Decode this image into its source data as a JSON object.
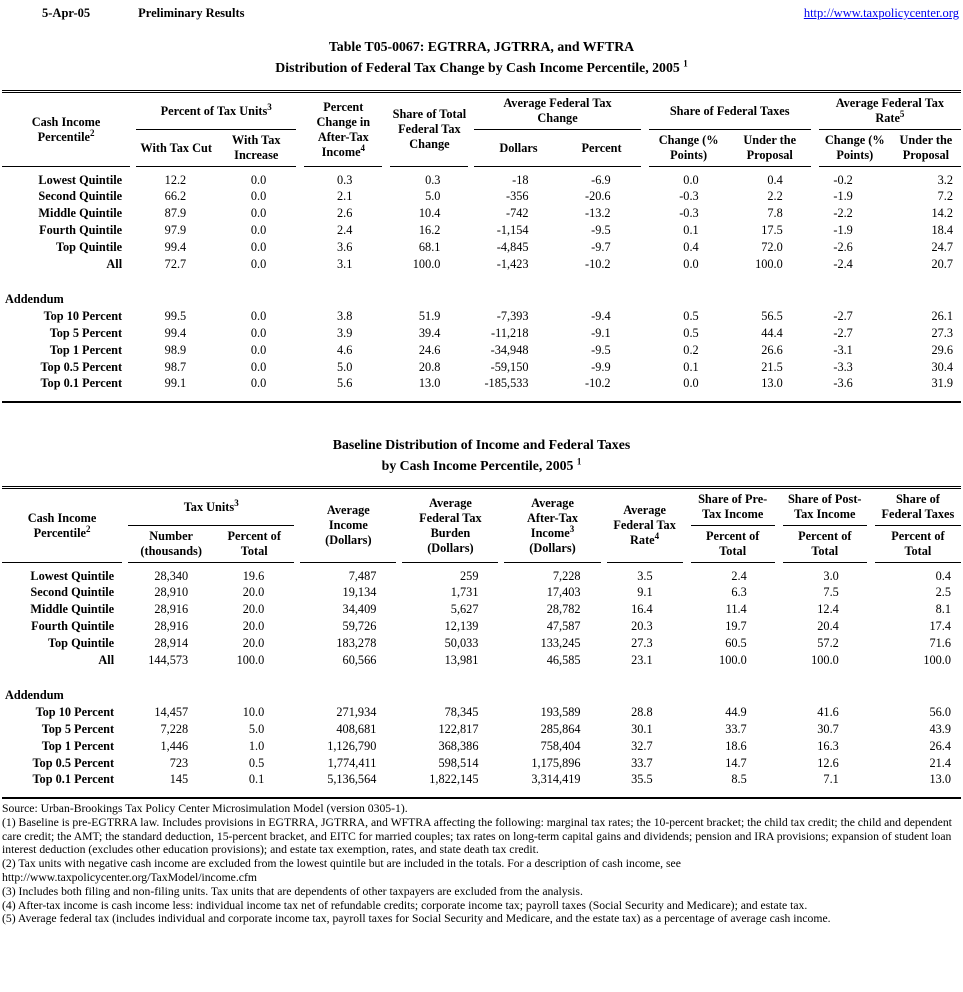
{
  "header": {
    "date": "5-Apr-05",
    "status": "Preliminary Results",
    "link": "http://www.taxpolicycenter.org",
    "link_color": "#0000ee"
  },
  "table1": {
    "title1": "Table T05-0067: EGTRRA, JGTRRA, and WFTRA",
    "title2": "Distribution of Federal Tax Change by Cash Income Percentile, 2005",
    "title_sup": "1",
    "headers": {
      "percentile": "Cash Income Percentile",
      "percentile_sup": "2",
      "tax_units": "Percent of Tax Units",
      "tax_units_sup": "3",
      "with_cut": "With Tax Cut",
      "with_increase": "With Tax Increase",
      "pct_change_ati": "Percent Change in After-Tax Income",
      "pct_change_ati_sup": "4",
      "share_total": "Share of Total Federal Tax Change",
      "avg_change": "Average Federal Tax Change",
      "dollars": "Dollars",
      "percent": "Percent",
      "share_fed": "Share of Federal Taxes",
      "change_pts": "Change (% Points)",
      "under_proposal": "Under the Proposal",
      "avg_rate": "Average Federal Tax Rate",
      "avg_rate_sup": "5"
    },
    "rows": [
      {
        "label": "Lowest Quintile",
        "values": [
          "12.2",
          "0.0",
          "0.3",
          "0.3",
          "-18",
          "-6.9",
          "0.0",
          "0.4",
          "-0.2",
          "3.2"
        ]
      },
      {
        "label": "Second Quintile",
        "values": [
          "66.2",
          "0.0",
          "2.1",
          "5.0",
          "-356",
          "-20.6",
          "-0.3",
          "2.2",
          "-1.9",
          "7.2"
        ]
      },
      {
        "label": "Middle Quintile",
        "values": [
          "87.9",
          "0.0",
          "2.6",
          "10.4",
          "-742",
          "-13.2",
          "-0.3",
          "7.8",
          "-2.2",
          "14.2"
        ]
      },
      {
        "label": "Fourth Quintile",
        "values": [
          "97.9",
          "0.0",
          "2.4",
          "16.2",
          "-1,154",
          "-9.5",
          "0.1",
          "17.5",
          "-1.9",
          "18.4"
        ]
      },
      {
        "label": "Top Quintile",
        "values": [
          "99.4",
          "0.0",
          "3.6",
          "68.1",
          "-4,845",
          "-9.7",
          "0.4",
          "72.0",
          "-2.6",
          "24.7"
        ]
      },
      {
        "label": "All",
        "values": [
          "72.7",
          "0.0",
          "3.1",
          "100.0",
          "-1,423",
          "-10.2",
          "0.0",
          "100.0",
          "-2.4",
          "20.7"
        ]
      }
    ],
    "addendum_label": "Addendum",
    "addendum_rows": [
      {
        "label": "Top 10 Percent",
        "values": [
          "99.5",
          "0.0",
          "3.8",
          "51.9",
          "-7,393",
          "-9.4",
          "0.5",
          "56.5",
          "-2.7",
          "26.1"
        ]
      },
      {
        "label": "Top 5 Percent",
        "values": [
          "99.4",
          "0.0",
          "3.9",
          "39.4",
          "-11,218",
          "-9.1",
          "0.5",
          "44.4",
          "-2.7",
          "27.3"
        ]
      },
      {
        "label": "Top 1 Percent",
        "values": [
          "98.9",
          "0.0",
          "4.6",
          "24.6",
          "-34,948",
          "-9.5",
          "0.2",
          "26.6",
          "-3.1",
          "29.6"
        ]
      },
      {
        "label": "Top 0.5 Percent",
        "values": [
          "98.7",
          "0.0",
          "5.0",
          "20.8",
          "-59,150",
          "-9.9",
          "0.1",
          "21.5",
          "-3.3",
          "30.4"
        ]
      },
      {
        "label": "Top 0.1 Percent",
        "values": [
          "99.1",
          "0.0",
          "5.6",
          "13.0",
          "-185,533",
          "-10.2",
          "0.0",
          "13.0",
          "-3.6",
          "31.9"
        ]
      }
    ]
  },
  "table2": {
    "title1": "Baseline Distribution of Income and Federal Taxes",
    "title2": "by Cash Income Percentile, 2005",
    "title_sup": "1",
    "headers": {
      "percentile": "Cash Income Percentile",
      "percentile_sup": "2",
      "tax_units": "Tax Units",
      "tax_units_sup": "3",
      "number": "Number (thousands)",
      "pct_of_total": "Percent of Total",
      "avg_income": "Average Income (Dollars)",
      "burden": "Average Federal Tax Burden (Dollars)",
      "after_tax": "Average After-Tax Income",
      "after_tax_sup": "3",
      "after_tax_unit": "(Dollars)",
      "rate": "Average Federal Tax Rate",
      "rate_sup": "4",
      "share_pre": "Share of Pre-Tax Income",
      "share_post": "Share of Post-Tax Income",
      "share_fed": "Share of Federal Taxes"
    },
    "rows": [
      {
        "label": "Lowest Quintile",
        "values": [
          "28,340",
          "19.6",
          "7,487",
          "259",
          "7,228",
          "3.5",
          "2.4",
          "3.0",
          "0.4"
        ]
      },
      {
        "label": "Second Quintile",
        "values": [
          "28,910",
          "20.0",
          "19,134",
          "1,731",
          "17,403",
          "9.1",
          "6.3",
          "7.5",
          "2.5"
        ]
      },
      {
        "label": "Middle Quintile",
        "values": [
          "28,916",
          "20.0",
          "34,409",
          "5,627",
          "28,782",
          "16.4",
          "11.4",
          "12.4",
          "8.1"
        ]
      },
      {
        "label": "Fourth Quintile",
        "values": [
          "28,916",
          "20.0",
          "59,726",
          "12,139",
          "47,587",
          "20.3",
          "19.7",
          "20.4",
          "17.4"
        ]
      },
      {
        "label": "Top Quintile",
        "values": [
          "28,914",
          "20.0",
          "183,278",
          "50,033",
          "133,245",
          "27.3",
          "60.5",
          "57.2",
          "71.6"
        ]
      },
      {
        "label": "All",
        "values": [
          "144,573",
          "100.0",
          "60,566",
          "13,981",
          "46,585",
          "23.1",
          "100.0",
          "100.0",
          "100.0"
        ]
      }
    ],
    "addendum_label": "Addendum",
    "addendum_rows": [
      {
        "label": "Top 10 Percent",
        "values": [
          "14,457",
          "10.0",
          "271,934",
          "78,345",
          "193,589",
          "28.8",
          "44.9",
          "41.6",
          "56.0"
        ]
      },
      {
        "label": "Top 5 Percent",
        "values": [
          "7,228",
          "5.0",
          "408,681",
          "122,817",
          "285,864",
          "30.1",
          "33.7",
          "30.7",
          "43.9"
        ]
      },
      {
        "label": "Top 1 Percent",
        "values": [
          "1,446",
          "1.0",
          "1,126,790",
          "368,386",
          "758,404",
          "32.7",
          "18.6",
          "16.3",
          "26.4"
        ]
      },
      {
        "label": "Top 0.5 Percent",
        "values": [
          "723",
          "0.5",
          "1,774,411",
          "598,514",
          "1,175,896",
          "33.7",
          "14.7",
          "12.6",
          "21.4"
        ]
      },
      {
        "label": "Top 0.1 Percent",
        "values": [
          "145",
          "0.1",
          "5,136,564",
          "1,822,145",
          "3,314,419",
          "35.5",
          "8.5",
          "7.1",
          "13.0"
        ]
      }
    ]
  },
  "footnotes": {
    "source": "Source: Urban-Brookings Tax Policy Center Microsimulation Model (version 0305-1).",
    "notes": [
      "(1) Baseline is pre-EGTRRA law.  Includes provisions in EGTRRA, JGTRRA, and WFTRA affecting the following: marginal tax rates; the 10-percent bracket; the child tax credit; the child and dependent care credit; the AMT; the standard deduction, 15-percent bracket, and EITC for married couples; tax rates on long-term capital gains and dividends; pension and IRA provisions; expansion of student loan interest deduction (excludes other education provisions); and estate tax exemption, rates, and state death tax credit.",
      "(2) Tax units with negative cash income are excluded from the lowest quintile but are included in the totals. For a description of cash income, see",
      "http://www.taxpolicycenter.org/TaxModel/income.cfm",
      "(3) Includes both filing and non-filing units.  Tax units that are dependents of other taxpayers are excluded from the analysis.",
      "(4) After-tax income is cash income less: individual income tax net of refundable credits; corporate income tax; payroll taxes (Social Security and Medicare); and estate tax.",
      "(5) Average federal tax (includes individual and corporate income tax, payroll taxes for Social Security and Medicare, and the estate tax) as a percentage of average cash income."
    ]
  }
}
